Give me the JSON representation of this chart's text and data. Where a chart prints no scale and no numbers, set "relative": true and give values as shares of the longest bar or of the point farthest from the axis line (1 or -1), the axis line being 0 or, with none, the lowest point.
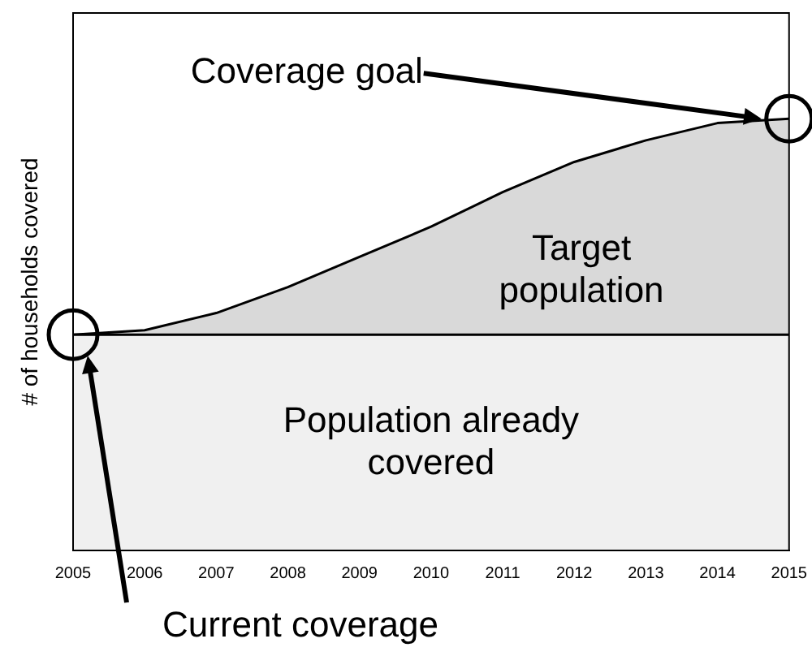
{
  "chart_data": {
    "type": "area",
    "relative": true,
    "ylabel": "# of households covered",
    "x": [
      2005,
      2006,
      2007,
      2008,
      2009,
      2010,
      2011,
      2012,
      2013,
      2014,
      2015
    ],
    "xlim": [
      2005,
      2015
    ],
    "xticks": [
      2005,
      2006,
      2007,
      2008,
      2009,
      2010,
      2011,
      2012,
      2013,
      2014,
      2015
    ],
    "series": [
      {
        "color": "#d9d9d9",
        "values": [
          0.5,
          0.51,
          0.55,
          0.61,
          0.68,
          0.75,
          0.83,
          0.9,
          0.95,
          0.99,
          1.0
        ]
      },
      {
        "color": "#f0f0f0",
        "values": [
          0.5,
          0.5,
          0.5,
          0.5,
          0.5,
          0.5,
          0.5,
          0.5,
          0.5,
          0.5,
          0.5
        ]
      }
    ],
    "annotations": [
      "Target\npopulation",
      "Population already\ncovered",
      "Coverage goal",
      "Current coverage"
    ],
    "legend": false,
    "grid": false,
    "marker": "none"
  }
}
